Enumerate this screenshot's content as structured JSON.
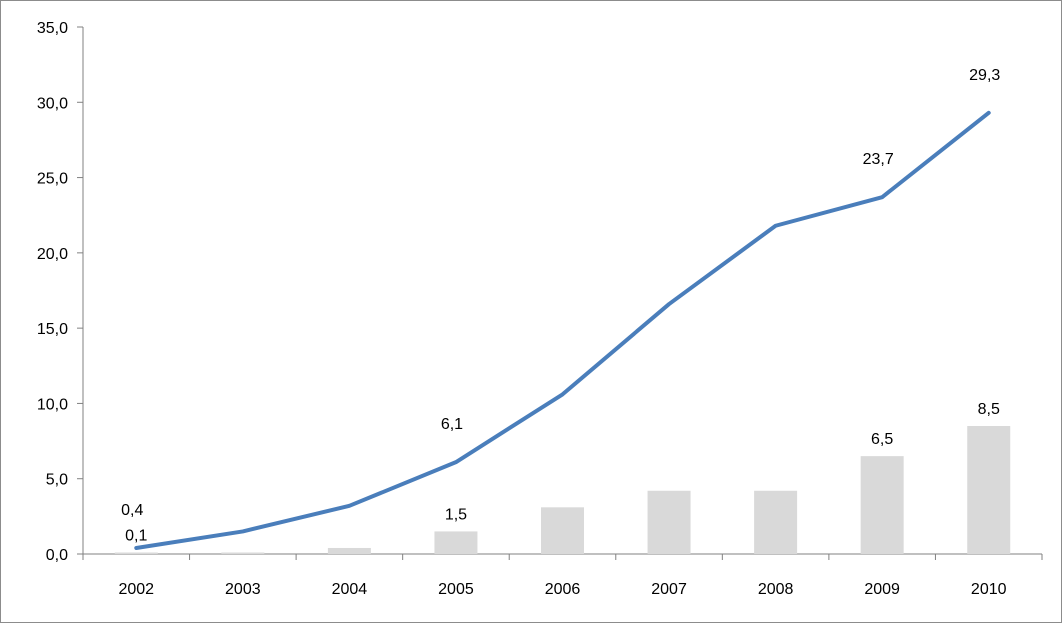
{
  "chart_data": {
    "type": "bar",
    "title": "",
    "xlabel": "",
    "ylabel": "",
    "categories": [
      "2002",
      "2003",
      "2004",
      "2005",
      "2006",
      "2007",
      "2008",
      "2009",
      "2010"
    ],
    "ylim": [
      0,
      35
    ],
    "yticks": [
      "0,0",
      "5,0",
      "10,0",
      "15,0",
      "20,0",
      "25,0",
      "30,0",
      "35,0"
    ],
    "grid": false,
    "legend": "none",
    "series": [
      {
        "kind": "bar",
        "color": "#d9d9d9",
        "values": [
          0.1,
          0.1,
          0.4,
          1.5,
          3.1,
          4.2,
          4.2,
          6.5,
          8.5
        ],
        "labels": [
          "0,1",
          "",
          "",
          "1,5",
          "",
          "",
          "",
          "6,5",
          "8,5"
        ]
      },
      {
        "kind": "line",
        "color": "#4a7ebb",
        "values": [
          0.4,
          1.5,
          3.2,
          6.1,
          10.6,
          16.6,
          21.8,
          23.7,
          29.3
        ],
        "labels": [
          "0,4",
          "",
          "",
          "6,1",
          "",
          "",
          "",
          "23,7",
          "29,3"
        ]
      }
    ]
  }
}
